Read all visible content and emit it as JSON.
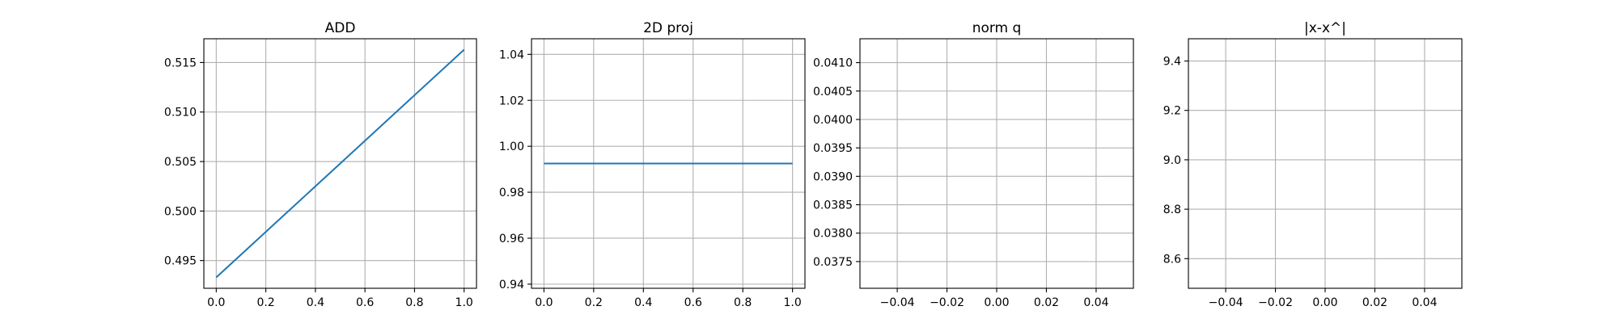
{
  "chart_data": [
    {
      "type": "line",
      "title": "ADD",
      "xlabel": "",
      "ylabel": "",
      "xlim": [
        -0.05,
        1.05
      ],
      "ylim": [
        0.4922,
        0.5174
      ],
      "grid": true,
      "xticks": [
        0.0,
        0.2,
        0.4,
        0.6,
        0.8,
        1.0
      ],
      "xtick_labels": [
        "0.0",
        "0.2",
        "0.4",
        "0.6",
        "0.8",
        "1.0"
      ],
      "yticks": [
        0.495,
        0.5,
        0.505,
        0.51,
        0.515
      ],
      "ytick_labels": [
        "0.495",
        "0.500",
        "0.505",
        "0.510",
        "0.515"
      ],
      "series": [
        {
          "x": [
            0.0,
            1.0
          ],
          "values": [
            0.4933,
            0.5163
          ],
          "color": "#1f77b4"
        }
      ]
    },
    {
      "type": "line",
      "title": "2D proj",
      "xlabel": "",
      "ylabel": "",
      "xlim": [
        -0.05,
        1.05
      ],
      "ylim": [
        0.9382,
        1.0468
      ],
      "grid": true,
      "xticks": [
        0.0,
        0.2,
        0.4,
        0.6,
        0.8,
        1.0
      ],
      "xtick_labels": [
        "0.0",
        "0.2",
        "0.4",
        "0.6",
        "0.8",
        "1.0"
      ],
      "yticks": [
        0.94,
        0.96,
        0.98,
        1.0,
        1.02,
        1.04
      ],
      "ytick_labels": [
        "0.94",
        "0.96",
        "0.98",
        "1.00",
        "1.02",
        "1.04"
      ],
      "series": [
        {
          "x": [
            0.0,
            1.0
          ],
          "values": [
            0.9925,
            0.9925
          ],
          "color": "#1f77b4"
        }
      ]
    },
    {
      "type": "line",
      "title": "norm q",
      "xlabel": "",
      "ylabel": "",
      "xlim": [
        -0.055,
        0.055
      ],
      "ylim": [
        0.03703,
        0.04142
      ],
      "grid": true,
      "xticks": [
        -0.04,
        -0.02,
        0.0,
        0.02,
        0.04
      ],
      "xtick_labels": [
        "−0.04",
        "−0.02",
        "0.00",
        "0.02",
        "0.04"
      ],
      "yticks": [
        0.0375,
        0.038,
        0.0385,
        0.039,
        0.0395,
        0.04,
        0.0405,
        0.041
      ],
      "ytick_labels": [
        "0.0375",
        "0.0380",
        "0.0385",
        "0.0390",
        "0.0395",
        "0.0400",
        "0.0405",
        "0.0410"
      ],
      "series": []
    },
    {
      "type": "line",
      "title": "|x-x^|",
      "xlabel": "",
      "ylabel": "",
      "xlim": [
        -0.055,
        0.055
      ],
      "ylim": [
        8.48,
        9.49
      ],
      "grid": true,
      "xticks": [
        -0.04,
        -0.02,
        0.0,
        0.02,
        0.04
      ],
      "xtick_labels": [
        "−0.04",
        "−0.02",
        "0.00",
        "0.02",
        "0.04"
      ],
      "yticks": [
        8.6,
        8.8,
        9.0,
        9.2,
        9.4
      ],
      "ytick_labels": [
        "8.6",
        "8.8",
        "9.0",
        "9.2",
        "9.4"
      ],
      "series": []
    }
  ]
}
